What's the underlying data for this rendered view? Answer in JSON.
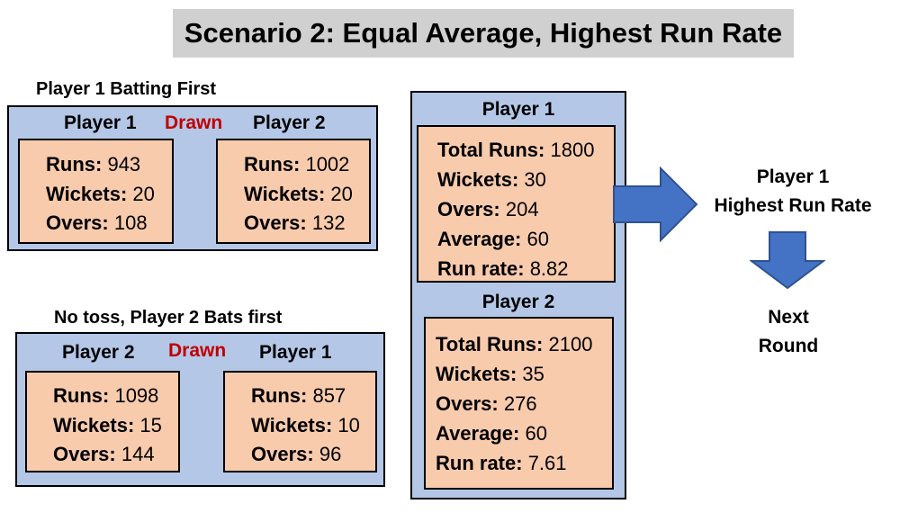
{
  "title": "Scenario 2: Equal Average, Highest Run Rate",
  "match1": {
    "caption": "Player 1 Batting First",
    "left_header": "Player 1",
    "result": "Drawn",
    "right_header": "Player 2",
    "left": [
      {
        "label": "Runs:",
        "value": "943"
      },
      {
        "label": "Wickets:",
        "value": "20"
      },
      {
        "label": "Overs:",
        "value": "108"
      }
    ],
    "right": [
      {
        "label": "Runs:",
        "value": "1002"
      },
      {
        "label": "Wickets:",
        "value": "20"
      },
      {
        "label": "Overs:",
        "value": "132"
      }
    ]
  },
  "match2": {
    "caption": "No toss, Player 2 Bats first",
    "left_header": "Player 2",
    "result": "Drawn",
    "right_header": "Player 1",
    "left": [
      {
        "label": "Runs:",
        "value": "1098"
      },
      {
        "label": "Wickets:",
        "value": "15"
      },
      {
        "label": "Overs:",
        "value": "144"
      }
    ],
    "right": [
      {
        "label": "Runs:",
        "value": "857"
      },
      {
        "label": "Wickets:",
        "value": "10"
      },
      {
        "label": "Overs:",
        "value": "96"
      }
    ]
  },
  "totals": {
    "player1": {
      "header": "Player 1",
      "rows": [
        {
          "label": "Total Runs:",
          "value": "1800"
        },
        {
          "label": "Wickets:",
          "value": "30"
        },
        {
          "label": "Overs:",
          "value": "204"
        },
        {
          "label": "Average:",
          "value": "60"
        },
        {
          "label": "Run rate:",
          "value": "8.82"
        }
      ]
    },
    "player2": {
      "header": "Player 2",
      "rows": [
        {
          "label": "Total Runs:",
          "value": "2100"
        },
        {
          "label": "Wickets:",
          "value": "35"
        },
        {
          "label": "Overs:",
          "value": "276"
        },
        {
          "label": "Average:",
          "value": "60"
        },
        {
          "label": "Run rate:",
          "value": "7.61"
        }
      ]
    }
  },
  "outcome": {
    "winner_line1": "Player 1",
    "winner_line2": "Highest Run Rate",
    "next_line1": "Next",
    "next_line2": "Round"
  },
  "colors": {
    "panel": "#b4c7e7",
    "box": "#f8cbad",
    "drawn": "#c00000",
    "arrow": "#4472c4",
    "title_bg": "#d0d0d0"
  }
}
